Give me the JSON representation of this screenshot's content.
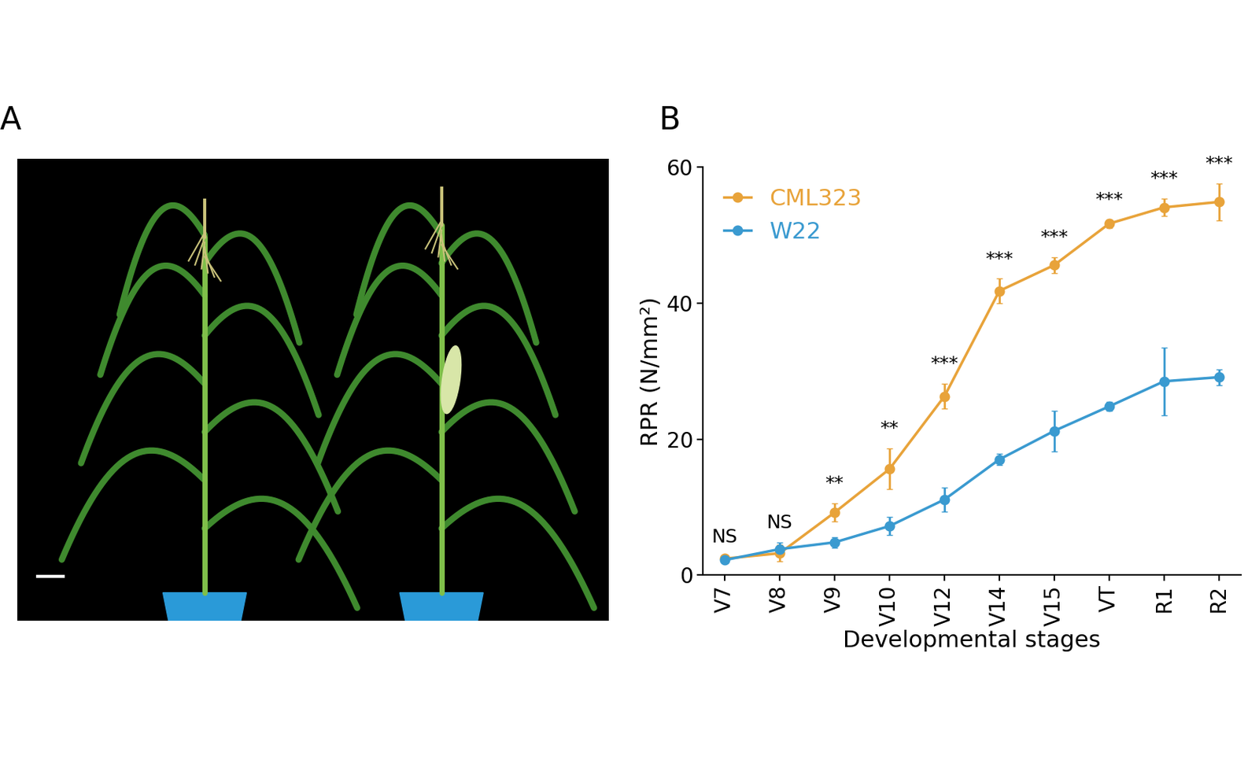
{
  "panel_labels": [
    "A",
    "B"
  ],
  "chart_data": {
    "type": "line",
    "xlabel": "Developmental stages",
    "ylabel": "RPR (N/mm²)",
    "categories": [
      "V7",
      "V8",
      "V9",
      "V10",
      "V12",
      "V14",
      "V15",
      "VT",
      "R1",
      "R2"
    ],
    "series": [
      {
        "name": "CML323",
        "color": "#E8A33A",
        "marker": "o",
        "values": [
          2.4,
          3.2,
          9.2,
          15.6,
          26.3,
          41.8,
          45.6,
          51.7,
          54.1,
          54.9
        ],
        "errors": [
          0.3,
          1.2,
          1.3,
          3.0,
          1.8,
          1.8,
          1.2,
          0.6,
          1.3,
          2.7
        ]
      },
      {
        "name": "W22",
        "color": "#3A9AD0",
        "marker": "o",
        "values": [
          2.2,
          3.8,
          4.8,
          7.2,
          11.1,
          17.0,
          21.2,
          24.8,
          28.5,
          29.1
        ],
        "errors": [
          0.3,
          1.0,
          0.8,
          1.3,
          1.8,
          0.8,
          3.0,
          0.7,
          5.0,
          1.2
        ]
      }
    ],
    "significance": [
      "NS",
      "NS",
      "**",
      "**",
      "***",
      "***",
      "***",
      "***",
      "***",
      "***"
    ],
    "ylim": [
      0,
      60
    ],
    "yticks": [
      0,
      20,
      40,
      60
    ],
    "legend": "upper left",
    "grid": false
  }
}
